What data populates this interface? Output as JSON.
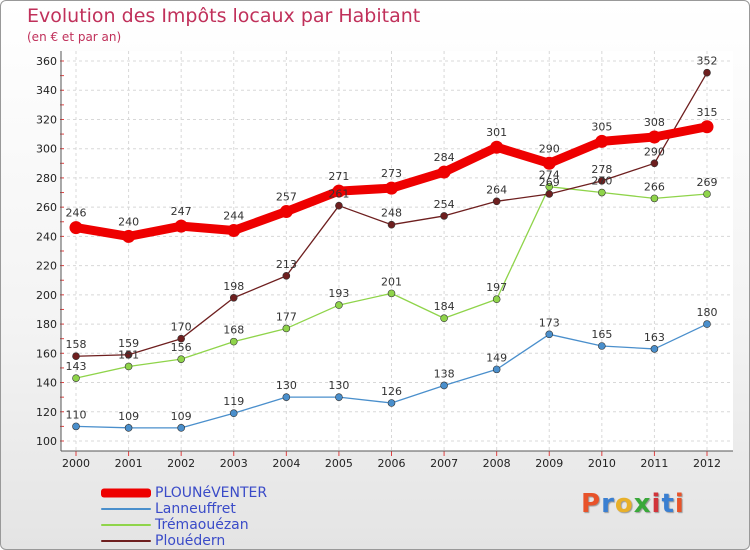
{
  "title": "Evolution des Impôts locaux par Habitant",
  "subtitle": "(en € et par an)",
  "logo_text": "Proxiti",
  "logo_colors": [
    "#e8532a",
    "#3a7fd1",
    "#e8b02a",
    "#3aa83a",
    "#d1343a",
    "#3a7fd1",
    "#e8532a"
  ],
  "chart_data": {
    "type": "line",
    "x": [
      "2000",
      "2001",
      "2002",
      "2003",
      "2004",
      "2005",
      "2006",
      "2007",
      "2008",
      "2009",
      "2010",
      "2011",
      "2012"
    ],
    "ylim": [
      100,
      360
    ],
    "yticks": [
      100,
      120,
      140,
      160,
      180,
      200,
      220,
      240,
      260,
      280,
      300,
      320,
      340,
      360
    ],
    "grid": true,
    "legend_position": "bottom-left",
    "series": [
      {
        "name": "PLOUNéVENTER",
        "color": "#ee0000",
        "values": [
          246,
          240,
          247,
          244,
          257,
          271,
          273,
          284,
          301,
          290,
          305,
          308,
          315
        ],
        "labels": [
          "246",
          "240",
          "247",
          "244",
          "257",
          "271",
          "273",
          "284",
          "301",
          "290",
          "305",
          "308",
          "315"
        ]
      },
      {
        "name": "Lanneuffret",
        "color": "#4a8fcc",
        "values": [
          110,
          109,
          109,
          119,
          130,
          130,
          126,
          138,
          149,
          173,
          165,
          163,
          180
        ],
        "labels": [
          "110",
          "109",
          "109",
          "119",
          "130",
          "130",
          "126",
          "138",
          "149",
          "173",
          "165",
          "163",
          "180"
        ]
      },
      {
        "name": "Trémaouézan",
        "color": "#8fd44a",
        "values": [
          143,
          151,
          156,
          168,
          177,
          193,
          201,
          184,
          197,
          274,
          270,
          266,
          269
        ],
        "labels": [
          "143",
          "151",
          "156",
          "168",
          "177",
          "193",
          "201",
          "184",
          "197",
          "274",
          "270",
          "266",
          "269"
        ]
      },
      {
        "name": "Plouédern",
        "color": "#6e1f1f",
        "values": [
          158,
          159,
          170,
          198,
          213,
          261,
          248,
          254,
          264,
          269,
          278,
          290,
          352
        ],
        "labels": [
          "158",
          "159",
          "170",
          "198",
          "213",
          "261",
          "248",
          "254",
          "264",
          "269",
          "278",
          "290",
          "352"
        ]
      }
    ]
  }
}
